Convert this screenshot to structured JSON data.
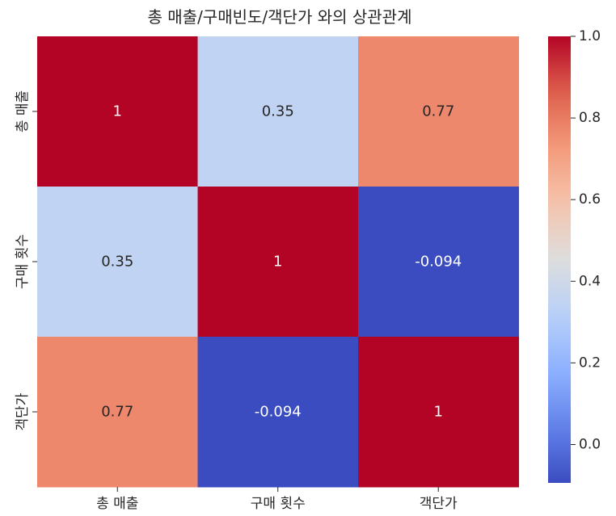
{
  "chart_data": {
    "type": "heatmap",
    "title": "총 매출/구매빈도/객단가 와의 상관관계",
    "rows": [
      "총 매출",
      "구매 횟수",
      "객단가"
    ],
    "columns": [
      "총 매출",
      "구매 횟수",
      "객단가"
    ],
    "values": [
      [
        1,
        0.35,
        0.77
      ],
      [
        0.35,
        1,
        -0.094
      ],
      [
        0.77,
        -0.094,
        1
      ]
    ],
    "annotations": [
      [
        "1",
        "0.35",
        "0.77"
      ],
      [
        "0.35",
        "1",
        "-0.094"
      ],
      [
        "0.77",
        "-0.094",
        "1"
      ]
    ],
    "colormap": "coolwarm",
    "colorbar": {
      "range": [
        -0.094,
        1
      ],
      "ticks": [
        0.0,
        0.2,
        0.4,
        0.6,
        0.8,
        1.0
      ],
      "tick_labels": [
        "0.0",
        "0.2",
        "0.4",
        "0.6",
        "0.8",
        "1.0"
      ]
    },
    "colors": {
      "low": "#3b4cc0",
      "mid": "#dddddd",
      "high": "#b40426"
    }
  }
}
